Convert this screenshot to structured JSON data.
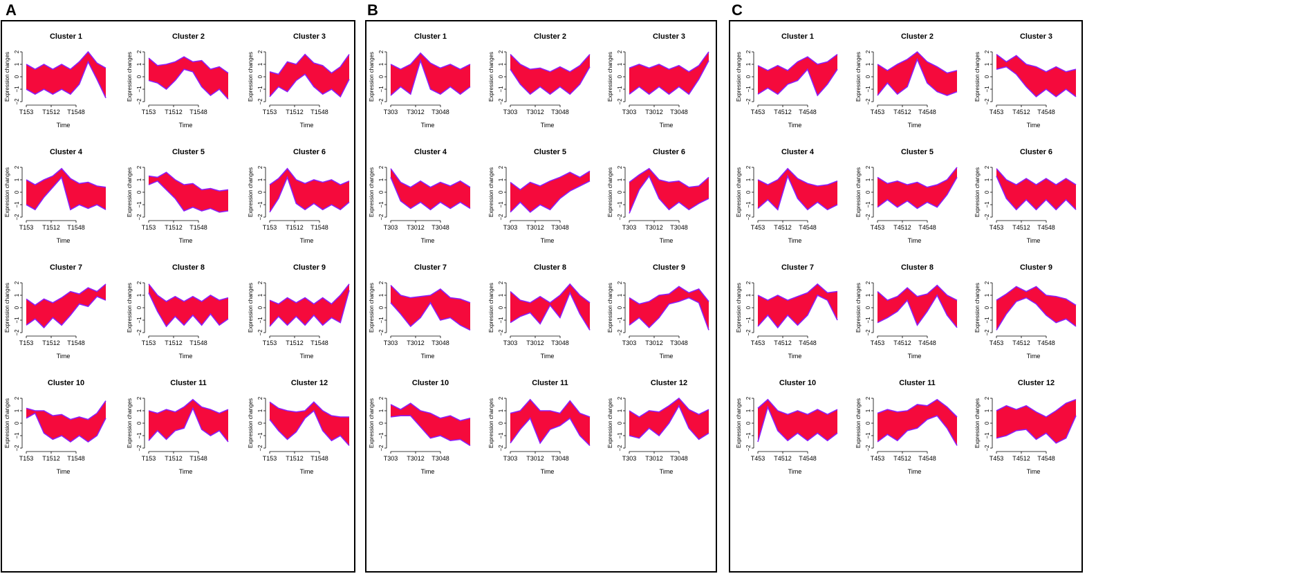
{
  "figure": {
    "ylabel": "Expression changes",
    "xlabel": "Time",
    "yticks": [
      "2",
      "1",
      "0",
      "−1",
      "−2"
    ],
    "band_color": "#f50a3c",
    "edge_color": "#8c1efa"
  },
  "chart_data": [
    {
      "panel": "A",
      "type": "area",
      "xticks": [
        "T153",
        "T1512",
        "T1548"
      ],
      "clusters": [
        {
          "title": "Cluster 1",
          "upper": [
            1.0,
            0.6,
            1.0,
            0.6,
            1.0,
            0.6,
            1.2,
            2.0,
            1.1,
            0.7
          ],
          "lower": [
            -1.0,
            -1.4,
            -1.0,
            -1.4,
            -1.0,
            -1.4,
            -0.6,
            1.2,
            -0.2,
            -1.7
          ]
        },
        {
          "title": "Cluster 2",
          "upper": [
            1.5,
            0.9,
            1.0,
            1.2,
            1.6,
            1.2,
            1.3,
            0.6,
            0.8,
            0.3
          ],
          "lower": [
            -0.3,
            -0.5,
            -1.0,
            -0.3,
            0.6,
            0.4,
            -0.8,
            -1.5,
            -1.0,
            -1.8
          ]
        },
        {
          "title": "Cluster 3",
          "upper": [
            0.4,
            0.2,
            1.2,
            1.0,
            1.8,
            1.1,
            0.9,
            0.3,
            0.8,
            1.8
          ],
          "lower": [
            -1.6,
            -0.8,
            -1.2,
            -0.3,
            0.2,
            -0.8,
            -1.4,
            -1.0,
            -1.6,
            -0.2
          ]
        },
        {
          "title": "Cluster 4",
          "upper": [
            1.0,
            0.6,
            1.0,
            1.3,
            1.9,
            1.1,
            0.7,
            0.8,
            0.5,
            0.4
          ],
          "lower": [
            -1.0,
            -1.4,
            -0.4,
            0.4,
            1.2,
            -1.4,
            -1.0,
            -1.3,
            -1.0,
            -1.4
          ]
        },
        {
          "title": "Cluster 5",
          "upper": [
            1.3,
            1.2,
            1.6,
            1.0,
            0.6,
            0.7,
            0.2,
            0.3,
            0.1,
            0.2
          ],
          "lower": [
            0.6,
            0.9,
            0.2,
            -0.5,
            -1.5,
            -1.2,
            -1.5,
            -1.3,
            -1.6,
            -1.5
          ]
        },
        {
          "title": "Cluster 6",
          "upper": [
            0.6,
            1.1,
            1.9,
            1.0,
            0.7,
            1.0,
            0.8,
            1.0,
            0.6,
            0.9
          ],
          "lower": [
            -1.6,
            -0.5,
            1.2,
            -0.9,
            -1.4,
            -0.9,
            -1.4,
            -1.0,
            -1.4,
            -0.8
          ]
        },
        {
          "title": "Cluster 7",
          "upper": [
            0.7,
            0.2,
            0.7,
            0.4,
            0.8,
            1.3,
            1.1,
            1.6,
            1.3,
            1.9
          ],
          "lower": [
            -1.4,
            -0.9,
            -1.6,
            -0.8,
            -1.4,
            -0.6,
            0.3,
            0.1,
            0.9,
            0.6
          ]
        },
        {
          "title": "Cluster 8",
          "upper": [
            1.9,
            1.0,
            0.5,
            0.9,
            0.5,
            0.9,
            0.5,
            1.0,
            0.6,
            0.8
          ],
          "lower": [
            1.2,
            -0.3,
            -1.5,
            -0.7,
            -1.4,
            -0.6,
            -1.4,
            -0.5,
            -1.4,
            -0.9
          ]
        },
        {
          "title": "Cluster 9",
          "upper": [
            0.6,
            0.3,
            0.8,
            0.4,
            0.8,
            0.3,
            0.8,
            0.3,
            1.0,
            1.9
          ],
          "lower": [
            -1.5,
            -0.7,
            -1.4,
            -0.7,
            -1.4,
            -0.6,
            -1.4,
            -0.8,
            -1.2,
            1.4
          ]
        },
        {
          "title": "Cluster 10",
          "upper": [
            1.2,
            1.0,
            1.0,
            0.6,
            0.7,
            0.3,
            0.5,
            0.3,
            0.8,
            1.8
          ],
          "lower": [
            0.4,
            0.8,
            -0.8,
            -1.3,
            -1.0,
            -1.5,
            -1.0,
            -1.5,
            -1.0,
            0.4
          ]
        },
        {
          "title": "Cluster 11",
          "upper": [
            1.0,
            0.8,
            1.1,
            0.9,
            1.3,
            1.9,
            1.3,
            1.1,
            0.8,
            1.1
          ],
          "lower": [
            -1.4,
            -0.6,
            -1.3,
            -0.6,
            -0.4,
            1.2,
            -0.5,
            -1.0,
            -0.6,
            -1.5
          ]
        },
        {
          "title": "Cluster 12",
          "upper": [
            1.7,
            1.2,
            1.0,
            0.9,
            1.0,
            1.7,
            1.0,
            0.6,
            0.5,
            0.5
          ],
          "lower": [
            0.3,
            -0.6,
            -1.3,
            -0.7,
            0.4,
            1.0,
            -0.6,
            -1.4,
            -1.0,
            -1.8
          ]
        }
      ]
    },
    {
      "panel": "B",
      "type": "area",
      "xticks": [
        "T303",
        "T3012",
        "T3048"
      ],
      "clusters": [
        {
          "title": "Cluster 1",
          "upper": [
            1.0,
            0.6,
            1.0,
            1.9,
            1.1,
            0.7,
            1.0,
            0.6,
            1.0
          ],
          "lower": [
            -1.5,
            -0.8,
            -1.4,
            1.3,
            -1.0,
            -1.4,
            -0.8,
            -1.4,
            -0.8
          ]
        },
        {
          "title": "Cluster 2",
          "upper": [
            1.8,
            1.0,
            0.6,
            0.7,
            0.4,
            0.8,
            0.4,
            0.9,
            1.8
          ],
          "lower": [
            0.6,
            -0.6,
            -1.4,
            -0.8,
            -1.4,
            -0.8,
            -1.4,
            -0.6,
            0.8
          ]
        },
        {
          "title": "Cluster 3",
          "upper": [
            0.7,
            1.0,
            0.7,
            1.0,
            0.6,
            0.9,
            0.4,
            0.9,
            2.0
          ],
          "lower": [
            -1.4,
            -0.8,
            -1.4,
            -0.8,
            -1.4,
            -0.8,
            -1.4,
            -0.2,
            1.3
          ]
        },
        {
          "title": "Cluster 4",
          "upper": [
            1.9,
            0.8,
            0.4,
            0.9,
            0.4,
            0.8,
            0.5,
            0.9,
            0.4
          ],
          "lower": [
            1.2,
            -0.7,
            -1.3,
            -0.8,
            -1.4,
            -0.8,
            -1.3,
            -0.8,
            -1.3
          ]
        },
        {
          "title": "Cluster 5",
          "upper": [
            0.8,
            0.2,
            0.8,
            0.5,
            0.9,
            1.2,
            1.6,
            1.2,
            1.7
          ],
          "lower": [
            -1.6,
            -0.8,
            -1.6,
            -1.0,
            -1.4,
            -0.5,
            0.1,
            0.5,
            0.9
          ]
        },
        {
          "title": "Cluster 6",
          "upper": [
            0.8,
            1.4,
            1.9,
            1.0,
            0.8,
            0.9,
            0.4,
            0.5,
            1.2
          ],
          "lower": [
            -1.7,
            0.2,
            1.3,
            -0.5,
            -1.4,
            -0.8,
            -1.4,
            -0.9,
            -0.5
          ]
        },
        {
          "title": "Cluster 7",
          "upper": [
            1.8,
            1.0,
            0.8,
            0.9,
            1.0,
            1.5,
            0.8,
            0.7,
            0.4
          ],
          "lower": [
            0.4,
            -0.5,
            -1.5,
            -0.8,
            0.4,
            -1.0,
            -0.8,
            -1.4,
            -1.8
          ]
        },
        {
          "title": "Cluster 8",
          "upper": [
            1.3,
            0.6,
            0.4,
            0.9,
            0.4,
            1.0,
            1.9,
            1.0,
            0.4
          ],
          "lower": [
            -1.2,
            -0.7,
            -0.4,
            -1.3,
            0.2,
            -0.8,
            1.2,
            -0.5,
            -1.8
          ]
        },
        {
          "title": "Cluster 9",
          "upper": [
            0.8,
            0.3,
            0.5,
            1.0,
            1.1,
            1.7,
            1.2,
            1.5,
            0.5
          ],
          "lower": [
            -1.4,
            -0.8,
            -1.6,
            -0.8,
            0.3,
            0.5,
            0.8,
            0.4,
            -1.8
          ]
        },
        {
          "title": "Cluster 10",
          "upper": [
            1.5,
            1.1,
            1.6,
            1.0,
            0.8,
            0.4,
            0.6,
            0.2,
            0.4
          ],
          "lower": [
            0.5,
            0.6,
            0.6,
            -0.3,
            -1.2,
            -1.0,
            -1.4,
            -1.3,
            -1.8
          ]
        },
        {
          "title": "Cluster 11",
          "upper": [
            0.8,
            1.0,
            1.9,
            1.0,
            1.0,
            0.8,
            1.8,
            0.8,
            0.5
          ],
          "lower": [
            -1.6,
            -0.5,
            0.4,
            -1.6,
            -0.5,
            -0.2,
            0.4,
            -1.0,
            -1.8
          ]
        },
        {
          "title": "Cluster 12",
          "upper": [
            1.0,
            0.5,
            1.0,
            0.9,
            1.4,
            2.0,
            1.1,
            0.7,
            1.1
          ],
          "lower": [
            -1.0,
            -1.2,
            -0.4,
            -1.0,
            0.0,
            1.4,
            -0.4,
            -1.3,
            -0.8
          ]
        }
      ]
    },
    {
      "panel": "C",
      "type": "area",
      "xticks": [
        "T453",
        "T4512",
        "T4548"
      ],
      "clusters": [
        {
          "title": "Cluster 1",
          "upper": [
            0.9,
            0.5,
            0.9,
            0.5,
            1.2,
            1.6,
            1.0,
            1.2,
            1.8
          ],
          "lower": [
            -1.4,
            -0.9,
            -1.4,
            -0.6,
            -0.3,
            0.6,
            -1.5,
            -0.6,
            0.6
          ]
        },
        {
          "title": "Cluster 2",
          "upper": [
            1.0,
            0.5,
            1.0,
            1.4,
            2.0,
            1.2,
            0.8,
            0.3,
            0.5
          ],
          "lower": [
            -1.5,
            -0.5,
            -1.4,
            -0.8,
            1.4,
            -0.5,
            -1.2,
            -1.5,
            -1.2
          ]
        },
        {
          "title": "Cluster 3",
          "upper": [
            1.8,
            1.2,
            1.7,
            1.0,
            0.8,
            0.4,
            0.8,
            0.4,
            0.6
          ],
          "lower": [
            0.6,
            0.8,
            0.2,
            -0.8,
            -1.6,
            -1.0,
            -1.6,
            -1.0,
            -1.6
          ]
        },
        {
          "title": "Cluster 4",
          "upper": [
            1.0,
            0.6,
            1.0,
            1.9,
            1.1,
            0.7,
            0.5,
            0.6,
            0.9
          ],
          "lower": [
            -1.3,
            -0.6,
            -1.4,
            1.3,
            -0.5,
            -1.4,
            -0.8,
            -1.4,
            -1.0
          ]
        },
        {
          "title": "Cluster 5",
          "upper": [
            1.2,
            0.7,
            0.9,
            0.6,
            0.8,
            0.4,
            0.6,
            1.0,
            2.0
          ],
          "lower": [
            -1.2,
            -0.6,
            -1.2,
            -0.7,
            -1.3,
            -0.8,
            -1.2,
            -0.2,
            1.2
          ]
        },
        {
          "title": "Cluster 6",
          "upper": [
            1.9,
            1.0,
            0.6,
            1.1,
            0.6,
            1.1,
            0.6,
            1.1,
            0.6
          ],
          "lower": [
            1.3,
            -0.5,
            -1.4,
            -0.6,
            -1.4,
            -0.6,
            -1.4,
            -0.6,
            -1.4
          ]
        },
        {
          "title": "Cluster 7",
          "upper": [
            1.0,
            0.6,
            1.0,
            0.6,
            0.9,
            1.2,
            1.9,
            1.2,
            1.3
          ],
          "lower": [
            -1.5,
            -0.6,
            -1.6,
            -0.6,
            -1.4,
            -0.6,
            1.0,
            0.6,
            -1.0
          ]
        },
        {
          "title": "Cluster 8",
          "upper": [
            1.3,
            0.6,
            0.9,
            1.6,
            0.9,
            1.1,
            1.8,
            1.0,
            0.6
          ],
          "lower": [
            -1.2,
            -0.8,
            -0.3,
            0.6,
            -1.4,
            -0.3,
            1.0,
            -0.6,
            -1.6
          ]
        },
        {
          "title": "Cluster 9",
          "upper": [
            0.6,
            1.1,
            1.7,
            1.3,
            1.7,
            1.0,
            0.9,
            0.7,
            0.2
          ],
          "lower": [
            -1.8,
            -0.5,
            0.5,
            0.8,
            0.3,
            -0.6,
            -1.2,
            -0.9,
            -1.5
          ]
        },
        {
          "title": "Cluster 10",
          "upper": [
            1.2,
            1.9,
            1.0,
            0.7,
            1.0,
            0.7,
            1.1,
            0.7,
            1.1
          ],
          "lower": [
            -1.5,
            1.3,
            -0.6,
            -1.4,
            -0.8,
            -1.4,
            -0.8,
            -1.4,
            -0.8
          ]
        },
        {
          "title": "Cluster 11",
          "upper": [
            0.8,
            1.1,
            0.9,
            1.0,
            1.5,
            1.4,
            1.9,
            1.3,
            0.5
          ],
          "lower": [
            -1.5,
            -0.9,
            -1.4,
            -0.6,
            -0.4,
            0.3,
            0.6,
            -0.4,
            -1.8
          ]
        },
        {
          "title": "Cluster 12",
          "upper": [
            1.0,
            1.4,
            1.1,
            1.4,
            0.9,
            0.5,
            1.0,
            1.6,
            1.9
          ],
          "lower": [
            -1.2,
            -1.0,
            -0.6,
            -0.5,
            -1.3,
            -0.8,
            -1.6,
            -1.2,
            0.6
          ]
        }
      ]
    }
  ]
}
